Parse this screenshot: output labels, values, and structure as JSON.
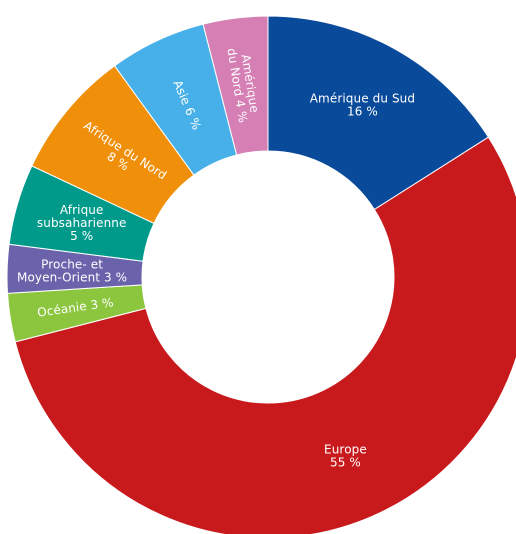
{
  "chart_data": {
    "type": "pie",
    "variant": "donut",
    "title": "",
    "start_angle_deg": 0,
    "direction": "clockwise",
    "slices": [
      {
        "label": "Amérique du Sud",
        "value": 16,
        "value_label": "16 %",
        "label_lines": [
          "Amérique du Sud",
          "16 %"
        ],
        "color": "#0a4a9a"
      },
      {
        "label": "Europe",
        "value": 55,
        "value_label": "55 %",
        "label_lines": [
          "Europe",
          "55 %"
        ],
        "color": "#c8191c"
      },
      {
        "label": "Océanie",
        "value": 3,
        "value_label": "3 %",
        "label_lines": [
          "Océanie 3 %"
        ],
        "color": "#8cc63f"
      },
      {
        "label": "Proche- et Moyen-Orient",
        "value": 3,
        "value_label": "3 %",
        "label_lines": [
          "Proche- et",
          "Moyen-Orient 3 %"
        ],
        "color": "#6a62ab"
      },
      {
        "label": "Afrique subsaharienne",
        "value": 5,
        "value_label": "5 %",
        "label_lines": [
          "Afrique",
          "subsaharienne",
          "5 %"
        ],
        "color": "#009a8b"
      },
      {
        "label": "Afrique du Nord",
        "value": 8,
        "value_label": "8 %",
        "label_lines": [
          "Afrique du Nord",
          "8 %"
        ],
        "color": "#f0900a"
      },
      {
        "label": "Asie",
        "value": 6,
        "value_label": "6 %",
        "label_lines": [
          "Asie 6 %"
        ],
        "color": "#48b0e8"
      },
      {
        "label": "Amérique du Nord",
        "value": 4,
        "value_label": "4 %",
        "label_lines": [
          "Amérique",
          "du Nord 4 %"
        ],
        "color": "#d57fb4"
      }
    ]
  }
}
